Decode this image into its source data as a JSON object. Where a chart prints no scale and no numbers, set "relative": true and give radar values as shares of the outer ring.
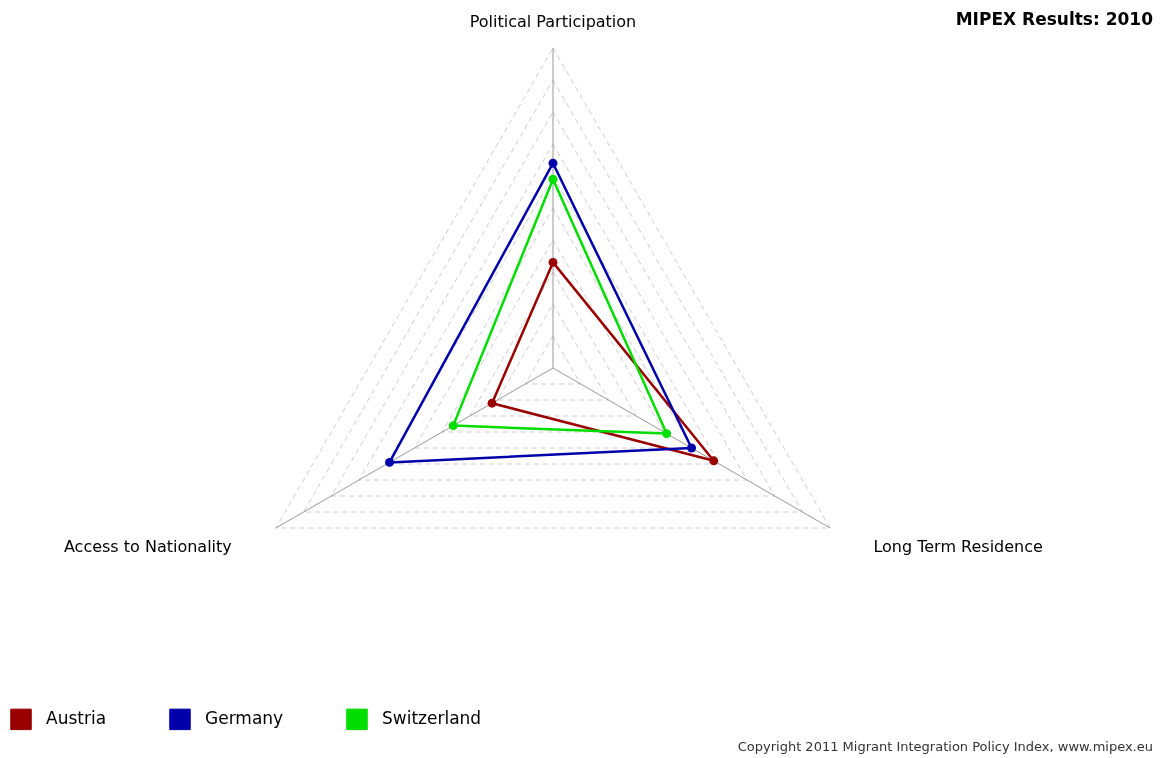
{
  "chart_data": {
    "type": "radar",
    "title": "MIPEX Results: 2010",
    "relative": true,
    "categories": [
      "Political Participation",
      "Long Term Residence",
      "Access to Nationality"
    ],
    "series": [
      {
        "name": "Austria",
        "color": "#990000",
        "values": [
          0.33,
          0.58,
          0.22
        ]
      },
      {
        "name": "Germany",
        "color": "#0000aa",
        "values": [
          0.64,
          0.5,
          0.59
        ]
      },
      {
        "name": "Switzerland",
        "color": "#00dd00",
        "values": [
          0.59,
          0.41,
          0.36
        ]
      }
    ],
    "grid": true,
    "legend": "bottom left",
    "marker": "circle",
    "line_style": "solid",
    "annotations": [
      "Copyright 2011 Migrant Integration Policy Index, www.mipex.eu"
    ]
  }
}
